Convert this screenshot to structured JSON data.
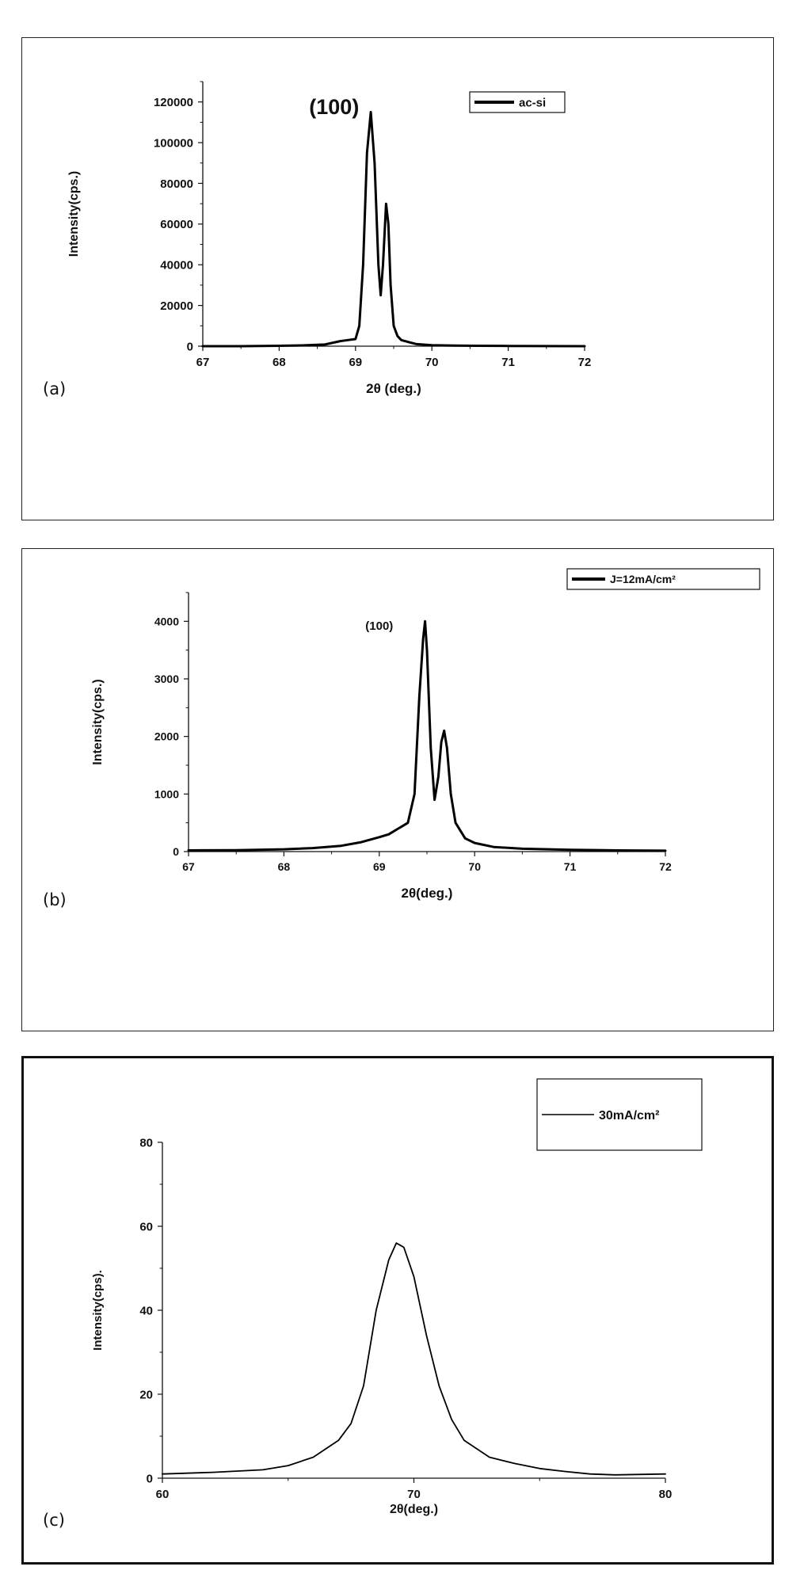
{
  "chart_data": [
    {
      "type": "line",
      "panel_label": "(a)",
      "xlabel": "2θ (deg.)",
      "ylabel": "Intensity(cps.)",
      "xlim": [
        67,
        72
      ],
      "ylim": [
        0,
        130000
      ],
      "xticks": [
        67,
        68,
        69,
        70,
        71,
        72
      ],
      "yticks": [
        0,
        20000,
        40000,
        60000,
        80000,
        100000,
        120000
      ],
      "grid": false,
      "legend_position": "top-right",
      "annotations": [
        {
          "text": "(100)",
          "x": 68.72,
          "y": 114000
        }
      ],
      "series": [
        {
          "name": "ac-si",
          "x": [
            67,
            67.5,
            68,
            68.3,
            68.6,
            68.8,
            68.9,
            69.0,
            69.05,
            69.1,
            69.15,
            69.2,
            69.25,
            69.3,
            69.33,
            69.36,
            69.4,
            69.43,
            69.46,
            69.5,
            69.55,
            69.6,
            69.7,
            69.8,
            70,
            70.3,
            70.6,
            71,
            72
          ],
          "y": [
            0,
            0,
            200,
            400,
            800,
            2500,
            3000,
            3500,
            10000,
            40000,
            95000,
            115000,
            90000,
            40000,
            25000,
            40000,
            70000,
            60000,
            30000,
            10000,
            5000,
            3000,
            2000,
            1000,
            500,
            300,
            200,
            100,
            0
          ]
        }
      ]
    },
    {
      "type": "line",
      "panel_label": "(b)",
      "xlabel": "2θ(deg.)",
      "ylabel": "Intensity(cps.)",
      "xlim": [
        67,
        72
      ],
      "ylim": [
        0,
        4500
      ],
      "xticks": [
        67,
        68,
        69,
        70,
        71,
        72
      ],
      "yticks": [
        0,
        1000,
        2000,
        3000,
        4000
      ],
      "grid": false,
      "legend_position": "top-right",
      "annotations": [
        {
          "text": "(100)",
          "x": 69.0,
          "y": 3850
        }
      ],
      "series": [
        {
          "name": "J=12mA/cm²",
          "x": [
            67,
            67.5,
            68,
            68.3,
            68.6,
            68.8,
            69.0,
            69.1,
            69.2,
            69.3,
            69.37,
            69.42,
            69.46,
            69.48,
            69.5,
            69.54,
            69.58,
            69.62,
            69.65,
            69.68,
            69.71,
            69.75,
            69.8,
            69.9,
            70.0,
            70.2,
            70.5,
            71,
            71.5,
            72
          ],
          "y": [
            20,
            25,
            40,
            60,
            100,
            160,
            250,
            300,
            400,
            500,
            1000,
            2700,
            3700,
            4000,
            3500,
            1800,
            900,
            1300,
            1900,
            2100,
            1800,
            1000,
            500,
            230,
            150,
            80,
            50,
            30,
            20,
            15
          ]
        }
      ]
    },
    {
      "type": "line",
      "panel_label": "(c)",
      "xlabel": "2θ(deg.)",
      "ylabel": "Intensity(cps).",
      "xlim": [
        60,
        80
      ],
      "ylim": [
        0,
        80
      ],
      "xticks": [
        60,
        70,
        80
      ],
      "yticks": [
        0,
        20,
        40,
        60,
        80
      ],
      "grid": false,
      "legend_position": "top-right",
      "series": [
        {
          "name": "30mA/cm²",
          "x": [
            60,
            62,
            64,
            65,
            66,
            67,
            67.5,
            68,
            68.5,
            69,
            69.3,
            69.6,
            70,
            70.5,
            71,
            71.5,
            72,
            73,
            74,
            75,
            76,
            77,
            78,
            80
          ],
          "y": [
            1,
            1.4,
            2,
            3,
            5,
            9,
            13,
            22,
            40,
            52,
            56,
            55,
            48,
            34,
            22,
            14,
            9,
            5,
            3.5,
            2.3,
            1.6,
            1,
            0.8,
            1
          ]
        }
      ]
    }
  ]
}
